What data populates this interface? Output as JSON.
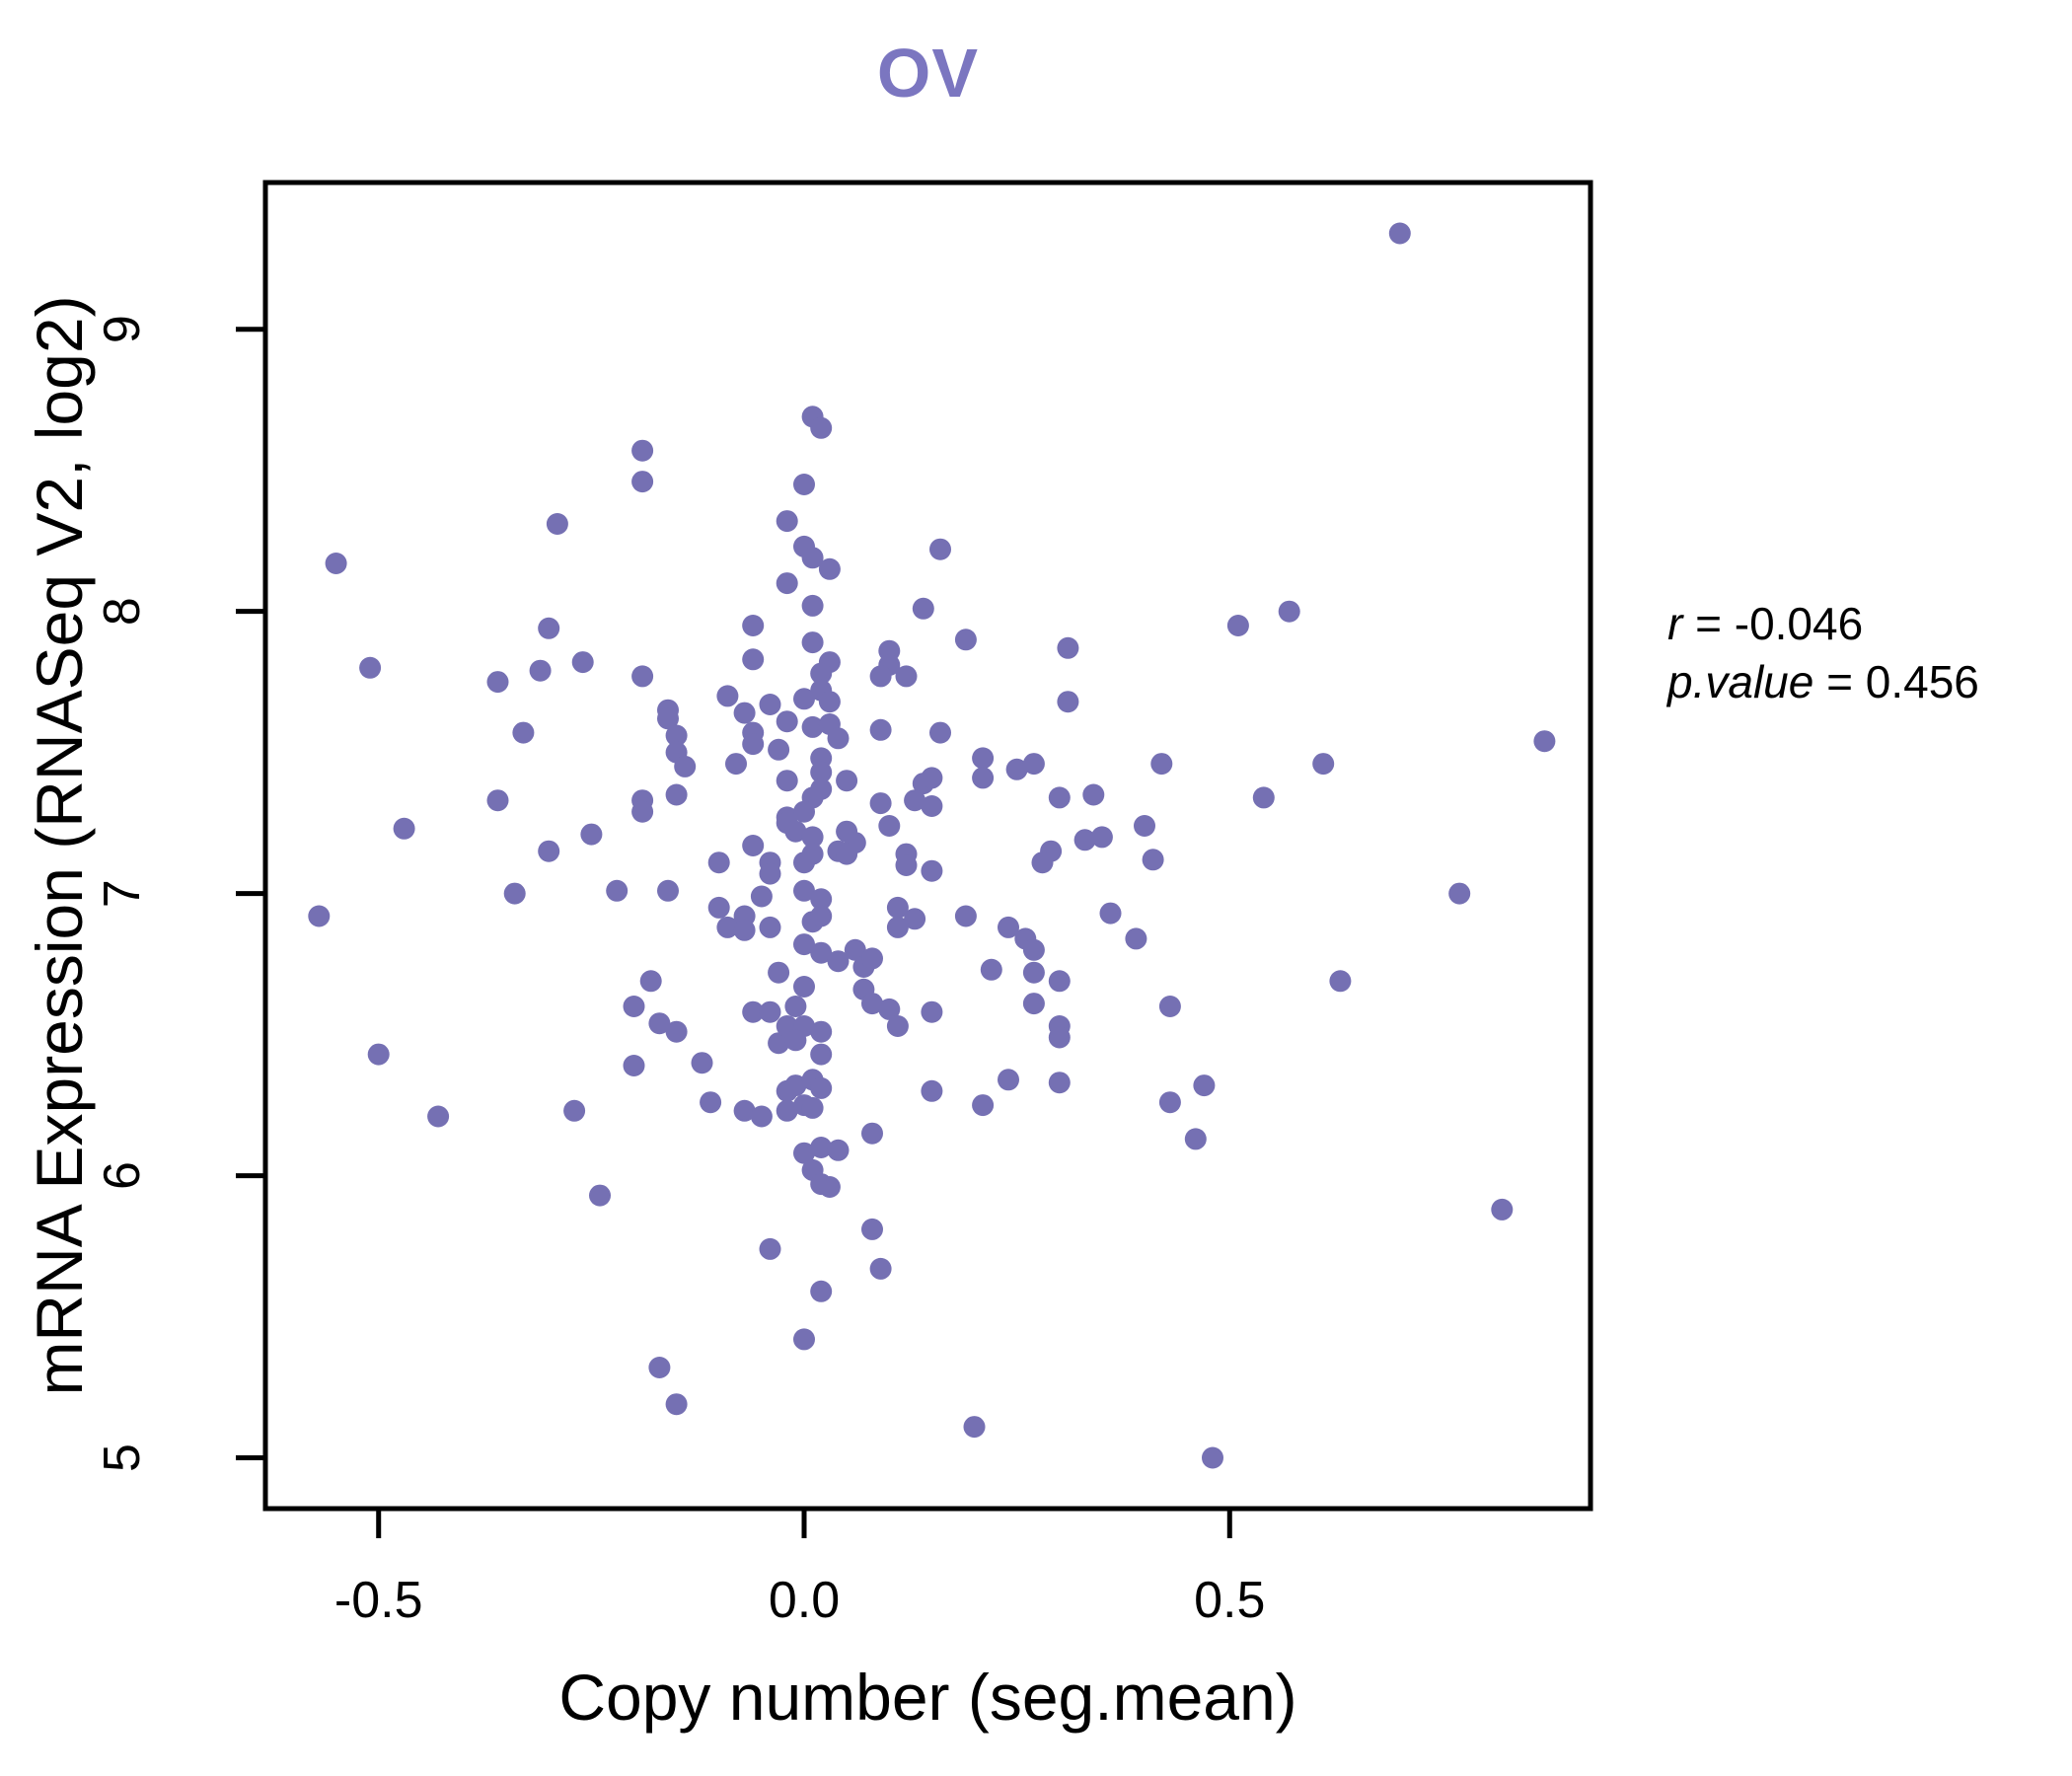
{
  "figure": {
    "title": "OV",
    "title_color": "#7b76c0",
    "annotation": {
      "line1_var": "r",
      "line1_rest": " = -0.046",
      "line2_var": "p.value",
      "line2_rest": " = 0.456"
    }
  },
  "chart_data": {
    "type": "scatter",
    "title": "OV",
    "xlabel": "Copy number (seg.mean)",
    "ylabel": "mRNA Expression (RNASeq V2, log2)",
    "xlim": [
      -0.633,
      0.924
    ],
    "ylim": [
      4.82,
      9.52
    ],
    "x_ticks": [
      -0.5,
      0.0,
      0.5
    ],
    "x_tick_labels": [
      "-0.5",
      "0.0",
      "0.5"
    ],
    "y_ticks": [
      5,
      6,
      7,
      8,
      9
    ],
    "y_tick_labels": [
      "5",
      "6",
      "7",
      "8",
      "9"
    ],
    "grid": false,
    "legend_position": "none",
    "point_color": "#7570b3",
    "point_radius_px": 11,
    "axis_color": "#000000",
    "correlation": {
      "r": -0.046,
      "p_value": 0.456
    },
    "points": [
      [
        0.7,
        9.34
      ],
      [
        0.01,
        8.69
      ],
      [
        0.02,
        8.65
      ],
      [
        -0.19,
        8.57
      ],
      [
        -0.19,
        8.46
      ],
      [
        0.0,
        8.45
      ],
      [
        -0.02,
        8.32
      ],
      [
        -0.29,
        8.31
      ],
      [
        0.0,
        8.23
      ],
      [
        0.01,
        8.19
      ],
      [
        -0.55,
        8.17
      ],
      [
        0.03,
        8.15
      ],
      [
        0.16,
        8.22
      ],
      [
        -0.02,
        8.1
      ],
      [
        0.01,
        8.02
      ],
      [
        0.14,
        8.01
      ],
      [
        0.57,
        8.0
      ],
      [
        0.51,
        7.95
      ],
      [
        -0.3,
        7.94
      ],
      [
        -0.06,
        7.95
      ],
      [
        -0.51,
        7.8
      ],
      [
        -0.31,
        7.79
      ],
      [
        -0.26,
        7.82
      ],
      [
        -0.36,
        7.75
      ],
      [
        -0.19,
        7.77
      ],
      [
        0.01,
        7.89
      ],
      [
        -0.06,
        7.83
      ],
      [
        0.1,
        7.86
      ],
      [
        0.1,
        7.81
      ],
      [
        0.19,
        7.9
      ],
      [
        0.31,
        7.87
      ],
      [
        0.03,
        7.82
      ],
      [
        0.02,
        7.78
      ],
      [
        0.09,
        7.77
      ],
      [
        0.12,
        7.77
      ],
      [
        0.02,
        7.72
      ],
      [
        -0.09,
        7.7
      ],
      [
        -0.04,
        7.67
      ],
      [
        0.0,
        7.69
      ],
      [
        0.03,
        7.68
      ],
      [
        0.31,
        7.68
      ],
      [
        -0.07,
        7.64
      ],
      [
        -0.16,
        7.65
      ],
      [
        -0.16,
        7.62
      ],
      [
        -0.15,
        7.56
      ],
      [
        -0.15,
        7.5
      ],
      [
        -0.14,
        7.45
      ],
      [
        -0.33,
        7.57
      ],
      [
        -0.02,
        7.61
      ],
      [
        0.01,
        7.59
      ],
      [
        0.03,
        7.6
      ],
      [
        0.04,
        7.55
      ],
      [
        -0.06,
        7.57
      ],
      [
        -0.06,
        7.53
      ],
      [
        -0.03,
        7.51
      ],
      [
        0.09,
        7.58
      ],
      [
        0.16,
        7.57
      ],
      [
        0.87,
        7.54
      ],
      [
        -0.08,
        7.46
      ],
      [
        0.42,
        7.46
      ],
      [
        0.61,
        7.46
      ],
      [
        0.02,
        7.48
      ],
      [
        0.02,
        7.43
      ],
      [
        0.02,
        7.37
      ],
      [
        0.01,
        7.34
      ],
      [
        -0.02,
        7.4
      ],
      [
        0.05,
        7.4
      ],
      [
        0.21,
        7.48
      ],
      [
        0.21,
        7.41
      ],
      [
        0.25,
        7.44
      ],
      [
        0.27,
        7.46
      ],
      [
        0.14,
        7.39
      ],
      [
        0.15,
        7.41
      ],
      [
        0.13,
        7.33
      ],
      [
        0.15,
        7.31
      ],
      [
        0.09,
        7.32
      ],
      [
        0.3,
        7.34
      ],
      [
        0.34,
        7.35
      ],
      [
        0.54,
        7.34
      ],
      [
        -0.15,
        7.35
      ],
      [
        -0.19,
        7.33
      ],
      [
        -0.19,
        7.29
      ],
      [
        -0.36,
        7.33
      ],
      [
        -0.47,
        7.23
      ],
      [
        -0.25,
        7.21
      ],
      [
        0.1,
        7.24
      ],
      [
        -0.02,
        7.27
      ],
      [
        0.0,
        7.29
      ],
      [
        -0.02,
        7.25
      ],
      [
        -0.01,
        7.22
      ],
      [
        0.01,
        7.2
      ],
      [
        0.4,
        7.24
      ],
      [
        -0.3,
        7.15
      ],
      [
        -0.06,
        7.17
      ],
      [
        0.01,
        7.14
      ],
      [
        0.0,
        7.11
      ],
      [
        0.04,
        7.15
      ],
      [
        -0.04,
        7.11
      ],
      [
        -0.04,
        7.07
      ],
      [
        0.05,
        7.22
      ],
      [
        0.06,
        7.18
      ],
      [
        0.05,
        7.14
      ],
      [
        0.12,
        7.14
      ],
      [
        0.12,
        7.1
      ],
      [
        -0.1,
        7.11
      ],
      [
        0.15,
        7.08
      ],
      [
        0.29,
        7.15
      ],
      [
        0.28,
        7.11
      ],
      [
        0.33,
        7.19
      ],
      [
        0.35,
        7.2
      ],
      [
        0.41,
        7.12
      ],
      [
        -0.22,
        7.01
      ],
      [
        -0.16,
        7.01
      ],
      [
        -0.34,
        7.0
      ],
      [
        -0.57,
        6.92
      ],
      [
        0.77,
        7.0
      ],
      [
        0.0,
        7.01
      ],
      [
        0.02,
        6.98
      ],
      [
        0.01,
        6.9
      ],
      [
        0.02,
        6.92
      ],
      [
        0.0,
        6.82
      ],
      [
        0.02,
        6.79
      ],
      [
        0.04,
        6.76
      ],
      [
        0.06,
        6.8
      ],
      [
        0.07,
        6.74
      ],
      [
        0.08,
        6.77
      ],
      [
        -0.05,
        6.99
      ],
      [
        -0.1,
        6.95
      ],
      [
        -0.07,
        6.92
      ],
      [
        -0.09,
        6.88
      ],
      [
        -0.07,
        6.87
      ],
      [
        -0.04,
        6.88
      ],
      [
        0.11,
        6.95
      ],
      [
        0.13,
        6.91
      ],
      [
        0.11,
        6.88
      ],
      [
        0.19,
        6.92
      ],
      [
        0.24,
        6.88
      ],
      [
        0.26,
        6.84
      ],
      [
        0.27,
        6.8
      ],
      [
        0.36,
        6.93
      ],
      [
        0.39,
        6.84
      ],
      [
        0.22,
        6.73
      ],
      [
        0.27,
        6.72
      ],
      [
        0.3,
        6.69
      ],
      [
        0.27,
        6.61
      ],
      [
        0.3,
        6.53
      ],
      [
        -0.03,
        6.72
      ],
      [
        0.0,
        6.67
      ],
      [
        -0.01,
        6.6
      ],
      [
        -0.18,
        6.69
      ],
      [
        -0.2,
        6.6
      ],
      [
        -0.17,
        6.54
      ],
      [
        -0.15,
        6.51
      ],
      [
        -0.5,
        6.43
      ],
      [
        -0.2,
        6.39
      ],
      [
        -0.12,
        6.4
      ],
      [
        0.63,
        6.69
      ],
      [
        0.43,
        6.6
      ],
      [
        0.02,
        6.43
      ],
      [
        -0.03,
        6.47
      ],
      [
        0.3,
        6.49
      ],
      [
        0.07,
        6.66
      ],
      [
        0.08,
        6.61
      ],
      [
        0.1,
        6.59
      ],
      [
        0.11,
        6.53
      ],
      [
        0.15,
        6.58
      ],
      [
        -0.06,
        6.58
      ],
      [
        -0.04,
        6.58
      ],
      [
        -0.02,
        6.53
      ],
      [
        0.0,
        6.53
      ],
      [
        0.02,
        6.51
      ],
      [
        -0.01,
        6.48
      ],
      [
        -0.11,
        6.26
      ],
      [
        -0.43,
        6.21
      ],
      [
        -0.27,
        6.23
      ],
      [
        -0.07,
        6.23
      ],
      [
        -0.05,
        6.21
      ],
      [
        -0.02,
        6.3
      ],
      [
        -0.01,
        6.32
      ],
      [
        0.01,
        6.34
      ],
      [
        -0.02,
        6.23
      ],
      [
        0.0,
        6.25
      ],
      [
        0.01,
        6.24
      ],
      [
        0.02,
        6.31
      ],
      [
        0.15,
        6.3
      ],
      [
        0.21,
        6.25
      ],
      [
        0.24,
        6.34
      ],
      [
        0.3,
        6.33
      ],
      [
        0.43,
        6.26
      ],
      [
        0.47,
        6.32
      ],
      [
        0.46,
        6.13
      ],
      [
        0.08,
        6.15
      ],
      [
        0.0,
        6.08
      ],
      [
        0.02,
        6.1
      ],
      [
        0.04,
        6.09
      ],
      [
        0.01,
        6.02
      ],
      [
        0.02,
        5.97
      ],
      [
        0.03,
        5.96
      ],
      [
        -0.24,
        5.93
      ],
      [
        0.82,
        5.88
      ],
      [
        0.08,
        5.81
      ],
      [
        -0.04,
        5.74
      ],
      [
        0.09,
        5.67
      ],
      [
        0.02,
        5.59
      ],
      [
        0.0,
        5.42
      ],
      [
        -0.17,
        5.32
      ],
      [
        -0.15,
        5.19
      ],
      [
        0.2,
        5.11
      ],
      [
        0.48,
        5.0
      ]
    ]
  }
}
